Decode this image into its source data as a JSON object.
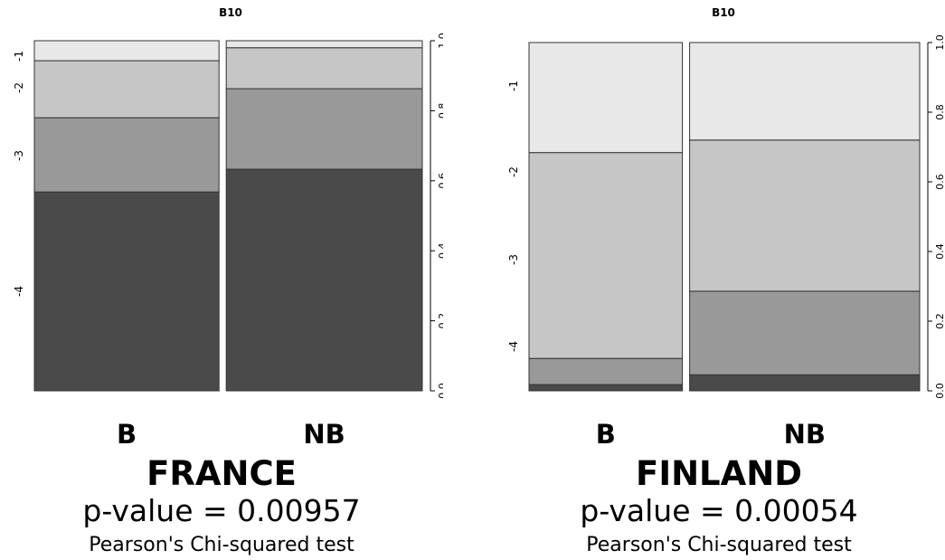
{
  "chart_data": [
    {
      "type": "bar",
      "subtype": "stacked-proportional (spineplot)",
      "title": "B10",
      "categories": [
        "B",
        "NB"
      ],
      "category_widths": [
        0.485,
        0.515
      ],
      "y_axis_right": {
        "range": [
          0,
          1
        ],
        "ticks": [
          "0.0",
          "0.2",
          "0.4",
          "0.6",
          "0.8",
          "1.0"
        ]
      },
      "y_axis_left_ticks": [
        "-1",
        "-2",
        "-3",
        "-4"
      ],
      "series": [
        {
          "level": "-4",
          "color": "#4a4a4a",
          "values": [
            0.568,
            0.633
          ]
        },
        {
          "level": "-3",
          "color": "#999999",
          "values": [
            0.212,
            0.23
          ]
        },
        {
          "level": "-2",
          "color": "#c6c6c6",
          "values": [
            0.163,
            0.117
          ]
        },
        {
          "level": "-1",
          "color": "#e8e8e8",
          "values": [
            0.057,
            0.02
          ]
        }
      ],
      "country": "FRANCE",
      "p_value": "p-value = 0.00957",
      "test": "Pearson's Chi-squared test"
    },
    {
      "type": "bar",
      "subtype": "stacked-proportional (spineplot)",
      "title": "B10",
      "categories": [
        "B",
        "NB"
      ],
      "category_widths": [
        0.4,
        0.6
      ],
      "y_axis_right": {
        "range": [
          0,
          1
        ],
        "ticks": [
          "0.0",
          "0.2",
          "0.4",
          "0.6",
          "0.8",
          "1.0"
        ]
      },
      "y_axis_left_ticks": [
        "-1",
        "-2",
        "-3",
        "-4"
      ],
      "series": [
        {
          "level": "-4",
          "color": "#4a4a4a",
          "values": [
            0.018,
            0.046
          ]
        },
        {
          "level": "-3",
          "color": "#999999",
          "values": [
            0.075,
            0.24
          ]
        },
        {
          "level": "-2",
          "color": "#c6c6c6",
          "values": [
            0.591,
            0.434
          ]
        },
        {
          "level": "-1",
          "color": "#e8e8e8",
          "values": [
            0.316,
            0.28
          ]
        }
      ],
      "country": "FINLAND",
      "p_value": "p-value = 0.00054",
      "test": "Pearson's Chi-squared test"
    }
  ]
}
